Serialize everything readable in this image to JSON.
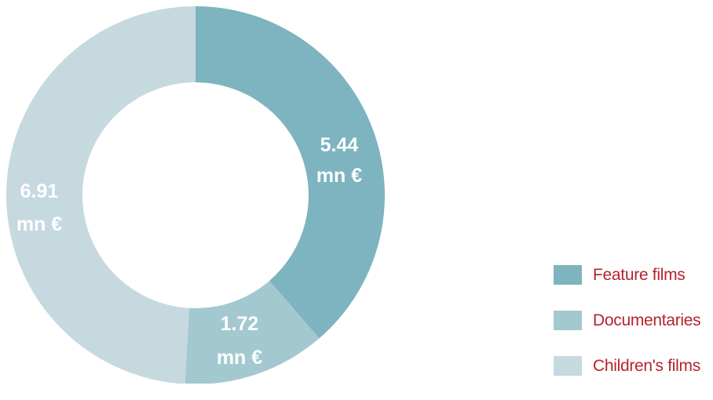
{
  "chart_data": {
    "type": "pie",
    "donut": true,
    "title": "",
    "unit": "mn €",
    "start": "top, clockwise",
    "legend_position": "bottom-right",
    "slices": [
      {
        "name": "Feature films",
        "value": 5.44,
        "value_label": "5.44",
        "unit_label": "mn €",
        "color": "#7db4c0"
      },
      {
        "name": "Documentaries",
        "value": 1.72,
        "value_label": "1.72",
        "unit_label": "mn €",
        "color": "#a3c8d0"
      },
      {
        "name": "Children's films",
        "value": 6.91,
        "value_label": "6.91",
        "unit_label": "mn €",
        "color": "#c6d9df"
      }
    ]
  }
}
